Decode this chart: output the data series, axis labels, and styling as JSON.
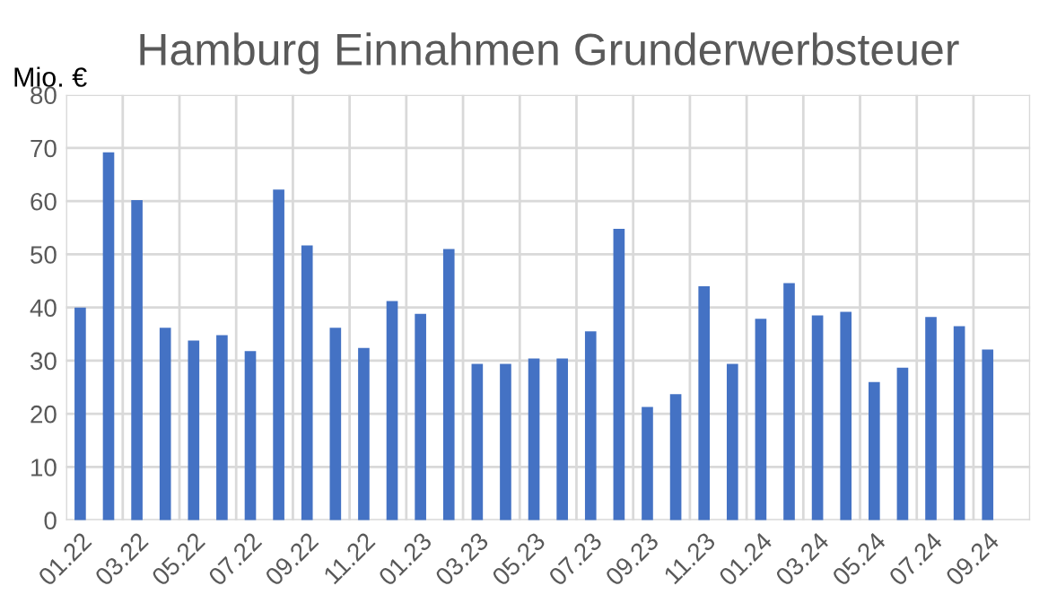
{
  "chart_data": {
    "type": "bar",
    "title": "Hamburg Einnahmen Grunderwerbsteuer",
    "ylabel": "Mio. €",
    "categories": [
      "01.22",
      null,
      "03.22",
      null,
      "05.22",
      null,
      "07.22",
      null,
      "09.22",
      null,
      "11.22",
      null,
      "01.23",
      null,
      "03.23",
      null,
      "05.23",
      null,
      "07.23",
      null,
      "09.23",
      null,
      "11.23",
      null,
      "01.24",
      null,
      "03.24",
      null,
      "05.24",
      null,
      "07.24",
      null,
      "09.24",
      null
    ],
    "values": [
      40,
      69.2,
      60.2,
      36.2,
      33.8,
      34.8,
      31.8,
      62.2,
      51.7,
      36.2,
      32.4,
      41.2,
      38.8,
      51,
      29.4,
      29.4,
      30.4,
      30.4,
      35.5,
      54.8,
      21.3,
      23.7,
      44,
      29.4,
      37.9,
      44.6,
      38.5,
      39.2,
      26,
      28.7,
      38.2,
      36.5,
      32.1,
      null
    ],
    "color": "#4472c4",
    "ylim": [
      0,
      80
    ],
    "yticks": [
      0,
      10,
      20,
      30,
      40,
      50,
      60,
      70,
      80
    ],
    "grid": true,
    "legend": false
  }
}
